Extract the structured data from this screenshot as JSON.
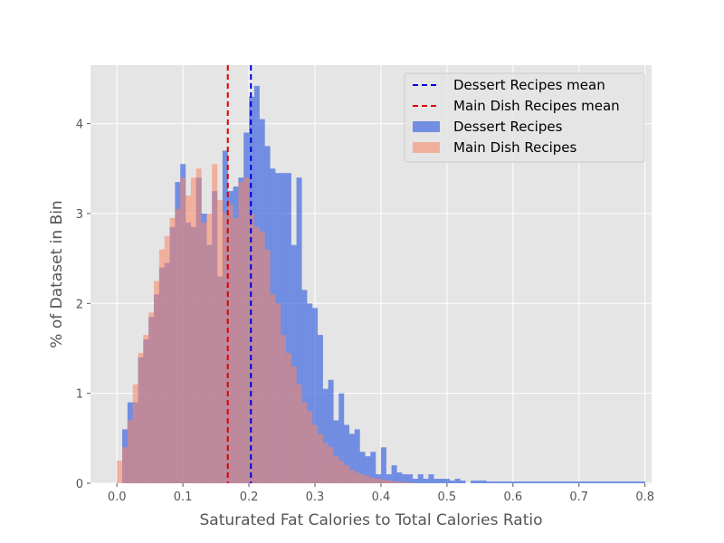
{
  "chart_data": {
    "type": "histogram",
    "title": "",
    "xlabel": "Saturated Fat Calories to Total Calories Ratio",
    "ylabel": "% of Dataset in Bin",
    "xlim": [
      -0.04,
      0.81
    ],
    "ylim": [
      0,
      4.65
    ],
    "xticks": [
      0.0,
      0.1,
      0.2,
      0.3,
      0.4,
      0.5,
      0.6,
      0.7,
      0.8
    ],
    "xtick_labels": [
      "0.0",
      "0.1",
      "0.2",
      "0.3",
      "0.4",
      "0.5",
      "0.6",
      "0.7",
      "0.8"
    ],
    "yticks": [
      0,
      1,
      2,
      3,
      4
    ],
    "ytick_labels": [
      "0",
      "1",
      "2",
      "3",
      "4"
    ],
    "grid": true,
    "legend_position": "top-right",
    "bin_width": 0.008,
    "series": [
      {
        "name": "Dessert Recipes",
        "color": "#4169e1",
        "opacity": 0.7,
        "bin_start": 0.0,
        "values": [
          0.0,
          0.6,
          0.9,
          0.9,
          1.4,
          1.6,
          1.85,
          2.1,
          2.4,
          2.45,
          2.85,
          3.35,
          3.55,
          2.9,
          2.85,
          3.4,
          3.0,
          2.65,
          3.25,
          2.3,
          3.7,
          3.25,
          3.3,
          3.4,
          3.9,
          4.3,
          4.42,
          4.05,
          3.75,
          3.5,
          3.45,
          3.45,
          3.45,
          2.65,
          3.4,
          2.15,
          2.0,
          1.95,
          1.65,
          1.05,
          1.15,
          0.7,
          1.0,
          0.65,
          0.55,
          0.6,
          0.35,
          0.3,
          0.35,
          0.1,
          0.4,
          0.1,
          0.2,
          0.12,
          0.1,
          0.1,
          0.05,
          0.1,
          0.05,
          0.1,
          0.05,
          0.05,
          0.05,
          0.03,
          0.05,
          0.03,
          0.0,
          0.03,
          0.03,
          0.03,
          0.02,
          0.02,
          0.02,
          0.02,
          0.02,
          0.02,
          0.02,
          0.02,
          0.02,
          0.02,
          0.02,
          0.02,
          0.02,
          0.02,
          0.02,
          0.02,
          0.02,
          0.02,
          0.02,
          0.02,
          0.02,
          0.02,
          0.02,
          0.02,
          0.02,
          0.02,
          0.02,
          0.02,
          0.02,
          0.02
        ]
      },
      {
        "name": "Main Dish Recipes",
        "color": "#fa8564",
        "opacity": 0.55,
        "bin_start": 0.0,
        "values": [
          0.25,
          0.4,
          0.7,
          1.1,
          1.45,
          1.65,
          1.9,
          2.25,
          2.6,
          2.75,
          2.95,
          3.05,
          3.4,
          3.2,
          3.4,
          3.5,
          2.9,
          3.0,
          3.55,
          3.15,
          3.0,
          3.1,
          2.95,
          3.35,
          3.4,
          3.0,
          2.85,
          2.8,
          2.6,
          2.1,
          2.0,
          1.65,
          1.45,
          1.3,
          1.1,
          0.9,
          0.8,
          0.65,
          0.55,
          0.45,
          0.4,
          0.3,
          0.25,
          0.2,
          0.15,
          0.12,
          0.1,
          0.08,
          0.06,
          0.05,
          0.04,
          0.03,
          0.02,
          0.02,
          0.01,
          0.01
        ]
      }
    ],
    "mean_lines": [
      {
        "name": "Dessert Recipes mean",
        "x": 0.203,
        "color": "#0000dd",
        "style": "dashed"
      },
      {
        "name": "Main Dish Recipes mean",
        "x": 0.168,
        "color": "#dd0000",
        "style": "dashed"
      }
    ],
    "legend": [
      {
        "label": "Dessert Recipes mean",
        "kind": "line",
        "color": "#0000dd"
      },
      {
        "label": "Main Dish Recipes mean",
        "kind": "line",
        "color": "#dd0000"
      },
      {
        "label": "Dessert Recipes",
        "kind": "patch",
        "color": "#4169e1",
        "opacity": 0.7
      },
      {
        "label": "Main Dish Recipes",
        "kind": "patch",
        "color": "#fa8564",
        "opacity": 0.55
      }
    ]
  }
}
